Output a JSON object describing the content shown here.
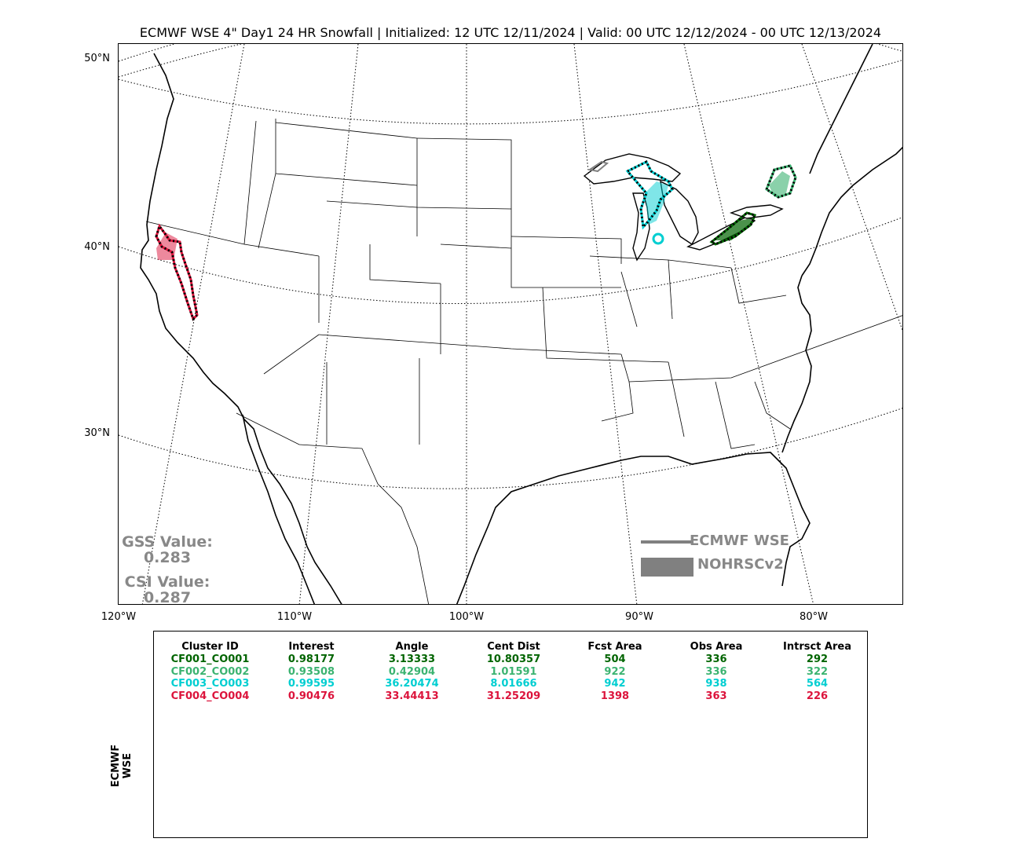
{
  "title": "ECMWF WSE 4\" Day1 24 HR Snowfall | Initialized: 12 UTC 12/11/2024 | Valid: 00 UTC 12/12/2024 - 00 UTC 12/13/2024",
  "map": {
    "lat_labels": [
      "50°N",
      "40°N",
      "30°N"
    ],
    "lon_labels": [
      "120°W",
      "110°W",
      "100°W",
      "90°W",
      "80°W"
    ]
  },
  "scores": {
    "gss_label": "GSS Value:",
    "gss_value": "0.283",
    "csi_label": "CSI Value:",
    "csi_value": "0.287"
  },
  "legend": {
    "forecast_label": "ECMWF WSE",
    "observed_label": "NOHRSCv2",
    "color": "#808080"
  },
  "table": {
    "side_label": "ECMWF WSE",
    "headers": [
      "Cluster ID",
      "Interest",
      "Angle",
      "Cent Dist",
      "Fcst Area",
      "Obs Area",
      "Intrsct Area"
    ],
    "rows": [
      {
        "color": "#006400",
        "cells": [
          "CF001_CO001",
          "0.98177",
          "3.13333",
          "10.80357",
          "504",
          "336",
          "292"
        ]
      },
      {
        "color": "#3cb371",
        "cells": [
          "CF002_CO002",
          "0.93508",
          "0.42904",
          "1.01591",
          "922",
          "336",
          "322"
        ]
      },
      {
        "color": "#00ced1",
        "cells": [
          "CF003_CO003",
          "0.99595",
          "36.20474",
          "8.01666",
          "942",
          "938",
          "564"
        ]
      },
      {
        "color": "#dc143c",
        "cells": [
          "CF004_CO004",
          "0.90476",
          "33.44413",
          "31.25209",
          "1398",
          "363",
          "226"
        ]
      }
    ]
  },
  "clusters": [
    {
      "id": "CF001_CO001",
      "color": "#006400"
    },
    {
      "id": "CF002_CO002",
      "color": "#3cb371"
    },
    {
      "id": "CF003_CO003",
      "color": "#00ced1"
    },
    {
      "id": "CF004_CO004",
      "color": "#dc143c"
    }
  ]
}
